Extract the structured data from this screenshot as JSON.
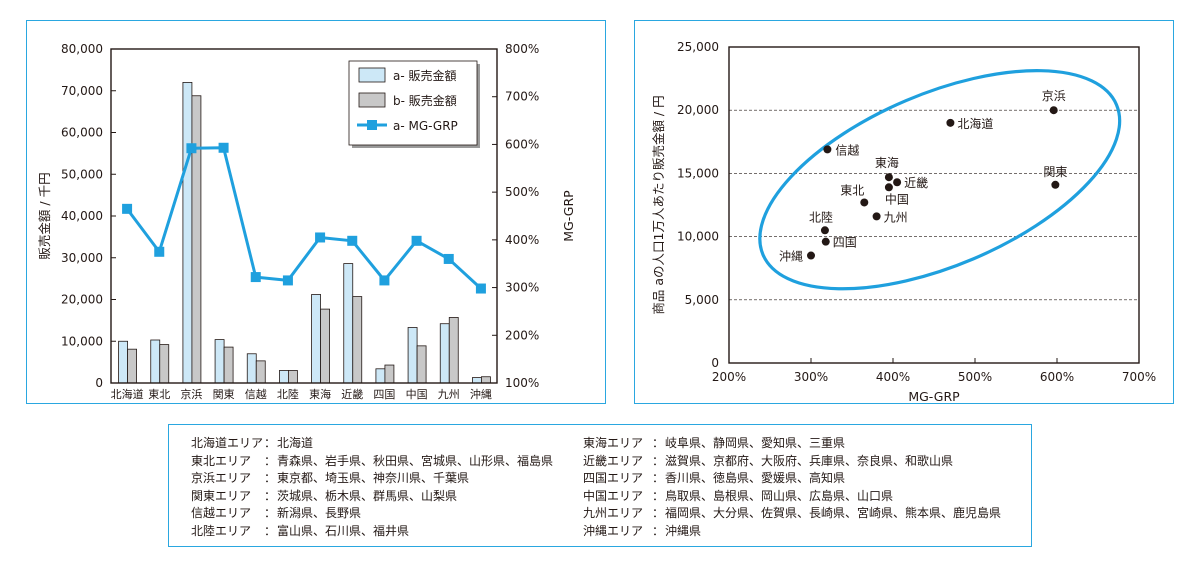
{
  "chart_data": [
    {
      "type": "bar",
      "categories": [
        "北海道",
        "東北",
        "京浜",
        "関東",
        "信越",
        "北陸",
        "東海",
        "近畿",
        "四国",
        "中国",
        "九州",
        "沖縄"
      ],
      "series": [
        {
          "name": "a- 販売金額",
          "kind": "bar",
          "color": "#cde8f7",
          "values": [
            10000,
            10300,
            72000,
            10400,
            7000,
            3000,
            21200,
            28600,
            3400,
            13300,
            14200,
            1300
          ]
        },
        {
          "name": "b- 販売金額",
          "kind": "bar",
          "color": "#c8c8c8",
          "values": [
            8100,
            9200,
            68800,
            8600,
            5300,
            3000,
            17700,
            20700,
            4300,
            8900,
            15700,
            1500
          ]
        },
        {
          "name": "a- MG-GRP",
          "kind": "line",
          "axis": "right",
          "color": "#1fa0de",
          "values": [
            465,
            375,
            592,
            593,
            322,
            315,
            405,
            398,
            315,
            398,
            360,
            298
          ]
        }
      ],
      "ylabel": "販売金額 / 千円",
      "ylim": [
        0,
        80000
      ],
      "yticks": [
        "0",
        "10,000",
        "20,000",
        "30,000",
        "40,000",
        "50,000",
        "60,000",
        "70,000",
        "80,000"
      ],
      "y2label": "MG-GRP",
      "y2lim": [
        100,
        800
      ],
      "y2ticks": [
        "100%",
        "200%",
        "300%",
        "400%",
        "500%",
        "600%",
        "700%",
        "800%"
      ],
      "legend": "top-right"
    },
    {
      "type": "scatter",
      "points": [
        {
          "label": "京浜",
          "x": 596,
          "y": 20000
        },
        {
          "label": "北海道",
          "x": 470,
          "y": 19000
        },
        {
          "label": "信越",
          "x": 320,
          "y": 16900
        },
        {
          "label": "東海",
          "x": 395,
          "y": 14700
        },
        {
          "label": "近畿",
          "x": 405,
          "y": 14300
        },
        {
          "label": "東北",
          "x": 365,
          "y": 12700
        },
        {
          "label": "中国",
          "x": 395,
          "y": 13900
        },
        {
          "label": "九州",
          "x": 380,
          "y": 11600
        },
        {
          "label": "関東",
          "x": 598,
          "y": 14100
        },
        {
          "label": "北陸",
          "x": 317,
          "y": 10500
        },
        {
          "label": "四国",
          "x": 318,
          "y": 9600
        },
        {
          "label": "沖縄",
          "x": 300,
          "y": 8500
        }
      ],
      "xlabel": "MG-GRP",
      "ylabel": "商品 aの人口1万人あたり販売金額 / 円",
      "xlim": [
        200,
        700
      ],
      "ylim": [
        0,
        25000
      ],
      "xticks": [
        "200%",
        "300%",
        "400%",
        "500%",
        "600%",
        "700%"
      ],
      "yticks": [
        "0",
        "5,000",
        "10,000",
        "15,000",
        "20,000",
        "25,000"
      ],
      "grid": "horizontal dashed",
      "ellipse_color": "#1fa0de"
    }
  ],
  "regions": {
    "left": [
      {
        "label": "北海道エリア",
        "prefs": "北海道"
      },
      {
        "label": "東北エリア",
        "prefs": "青森県、岩手県、秋田県、宮城県、山形県、福島県"
      },
      {
        "label": "京浜エリア",
        "prefs": "東京都、埼玉県、神奈川県、千葉県"
      },
      {
        "label": "関東エリア",
        "prefs": "茨城県、栃木県、群馬県、山梨県"
      },
      {
        "label": "信越エリア",
        "prefs": "新潟県、長野県"
      },
      {
        "label": "北陸エリア",
        "prefs": "富山県、石川県、福井県"
      }
    ],
    "right": [
      {
        "label": "東海エリア",
        "prefs": "岐阜県、静岡県、愛知県、三重県"
      },
      {
        "label": "近畿エリア",
        "prefs": "滋賀県、京都府、大阪府、兵庫県、奈良県、和歌山県"
      },
      {
        "label": "四国エリア",
        "prefs": "香川県、徳島県、愛媛県、高知県"
      },
      {
        "label": "中国エリア",
        "prefs": "鳥取県、島根県、岡山県、広島県、山口県"
      },
      {
        "label": "九州エリア",
        "prefs": "福岡県、大分県、佐賀県、長崎県、宮崎県、熊本県、鹿児島県"
      },
      {
        "label": "沖縄エリア",
        "prefs": "沖縄県"
      }
    ],
    "separator": "："
  }
}
